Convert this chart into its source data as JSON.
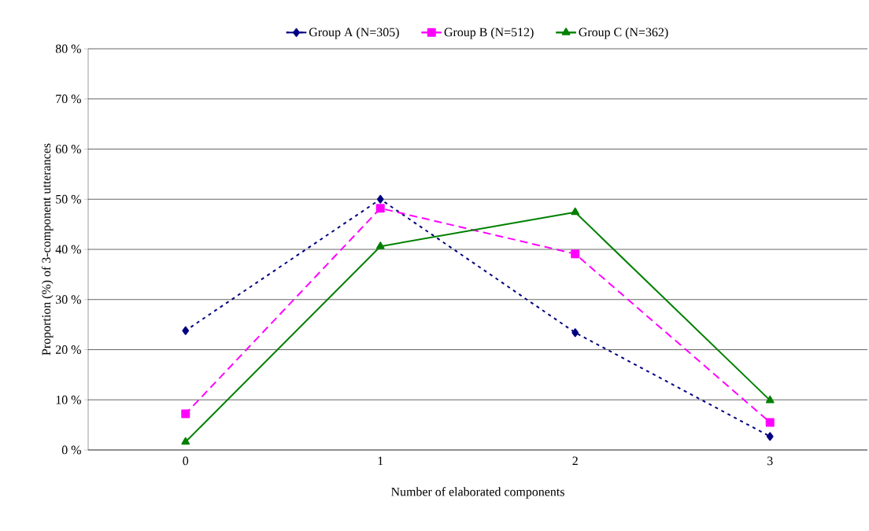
{
  "chart_data": {
    "type": "line",
    "xlabel": "Number of elaborated components",
    "ylabel": "Proportion (%) of 3-component utterances",
    "categories": [
      "0",
      "1",
      "2",
      "3"
    ],
    "series": [
      {
        "name": "Group A (N=305)",
        "color": "#000080",
        "values": [
          23.8,
          50.0,
          23.4,
          2.7
        ],
        "marker": "diamond",
        "line_style": "dotted"
      },
      {
        "name": "Group B (N=512)",
        "color": "#ff00ff",
        "values": [
          7.2,
          48.2,
          39.1,
          5.5
        ],
        "marker": "square",
        "line_style": "dashed"
      },
      {
        "name": "Group C (N=362)",
        "color": "#008000",
        "values": [
          1.6,
          40.6,
          47.4,
          9.9
        ],
        "marker": "triangle",
        "line_style": "solid"
      }
    ],
    "ylim": [
      0,
      80
    ],
    "yticks": [
      {
        "value": 0,
        "label": "0 %"
      },
      {
        "value": 10,
        "label": "10 %"
      },
      {
        "value": 20,
        "label": "20 %"
      },
      {
        "value": 30,
        "label": "30 %"
      },
      {
        "value": 40,
        "label": "40 %"
      },
      {
        "value": 50,
        "label": "50 %"
      },
      {
        "value": 60,
        "label": "60 %"
      },
      {
        "value": 70,
        "label": "70 %"
      },
      {
        "value": 80,
        "label": "80 %"
      }
    ],
    "grid": "y",
    "legend": "top"
  }
}
